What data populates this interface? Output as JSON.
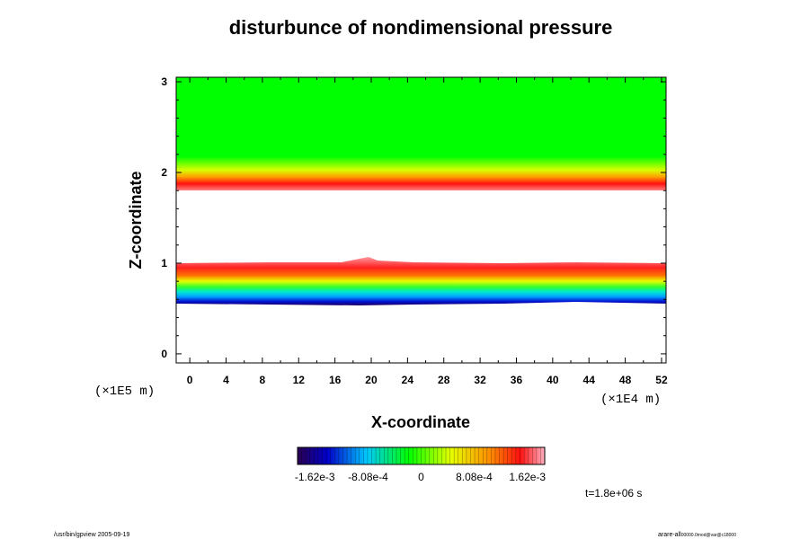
{
  "chart_data": {
    "type": "heatmap",
    "title": "disturbunce of nondimensional pressure",
    "xlabel": "X-coordinate",
    "ylabel": "Z-coordinate",
    "x_unit": "(×1E4 m)",
    "y_unit": "(×1E5 m)",
    "xlim": [
      -1.5,
      52.5
    ],
    "ylim": [
      -0.1,
      3.05
    ],
    "x_ticks": [
      0,
      4,
      8,
      12,
      16,
      20,
      24,
      28,
      32,
      36,
      40,
      44,
      48,
      52
    ],
    "y_ticks": [
      0,
      1,
      2,
      3
    ],
    "colorbar": {
      "min": -0.00162,
      "max": 0.00162,
      "tick_labels": [
        "-1.62e-3",
        "-8.08e-4",
        "0",
        "8.08e-4",
        "1.62e-3"
      ],
      "tick_values": [
        -0.00162,
        -0.000808,
        0,
        0.000808,
        0.00162
      ]
    },
    "bands": [
      {
        "z_range": [
          0.58,
          0.65
        ],
        "level": "min",
        "color": "#1a1aa0"
      },
      {
        "z_range": [
          0.65,
          0.8
        ],
        "level": "low-mid",
        "color": "#00e0e0"
      },
      {
        "z_range": [
          0.8,
          1.0
        ],
        "level": "max",
        "color": "#ff2020"
      },
      {
        "z_range": [
          1.85,
          1.9
        ],
        "level": "max",
        "color": "#ff2020"
      },
      {
        "z_range": [
          1.9,
          3.05
        ],
        "level": "zero",
        "color": "#00ff00"
      }
    ],
    "time_label": "t=1.8e+06 s"
  },
  "footer": {
    "left": "/usr/bin/gpview 2005-09-19",
    "right": "arare-all",
    "right_small": "00000.0mod@var@c18000"
  }
}
